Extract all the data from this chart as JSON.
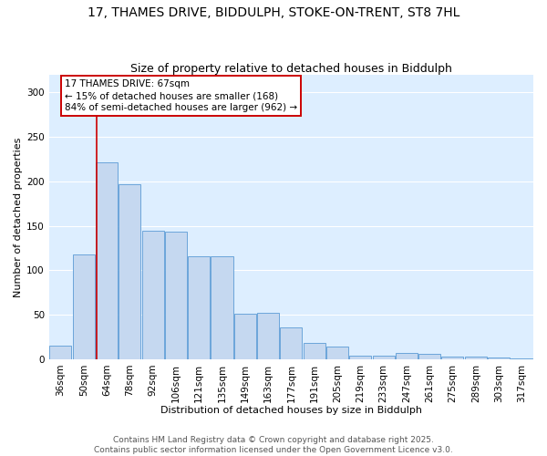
{
  "title": "17, THAMES DRIVE, BIDDULPH, STOKE-ON-TRENT, ST8 7HL",
  "subtitle": "Size of property relative to detached houses in Biddulph",
  "xlabel": "Distribution of detached houses by size in Biddulph",
  "ylabel": "Number of detached properties",
  "footer_line1": "Contains HM Land Registry data © Crown copyright and database right 2025.",
  "footer_line2": "Contains public sector information licensed under the Open Government Licence v3.0.",
  "annotation_line1": "17 THAMES DRIVE: 67sqm",
  "annotation_line2": "← 15% of detached houses are smaller (168)",
  "annotation_line3": "84% of semi-detached houses are larger (962) →",
  "categories": [
    "36sqm",
    "50sqm",
    "64sqm",
    "78sqm",
    "92sqm",
    "106sqm",
    "121sqm",
    "135sqm",
    "149sqm",
    "163sqm",
    "177sqm",
    "191sqm",
    "205sqm",
    "219sqm",
    "233sqm",
    "247sqm",
    "261sqm",
    "275sqm",
    "289sqm",
    "303sqm",
    "317sqm"
  ],
  "bar_heights": [
    15,
    118,
    222,
    197,
    145,
    144,
    116,
    116,
    51,
    52,
    36,
    18,
    14,
    4,
    4,
    7,
    6,
    3,
    3,
    2,
    1
  ],
  "bar_color": "#c5d8f0",
  "bar_edge_color": "#5b9bd5",
  "vline_color": "#cc0000",
  "vline_x_index": 2,
  "annotation_box_color": "#cc0000",
  "annotation_fill": "white",
  "plot_bg_color": "#ddeeff",
  "fig_bg_color": "#ffffff",
  "ylim": [
    0,
    320
  ],
  "yticks": [
    0,
    50,
    100,
    150,
    200,
    250,
    300
  ],
  "grid_color": "#ffffff",
  "title_fontsize": 10,
  "subtitle_fontsize": 9,
  "axis_label_fontsize": 8,
  "tick_fontsize": 7.5,
  "annotation_fontsize": 7.5,
  "footer_fontsize": 6.5
}
